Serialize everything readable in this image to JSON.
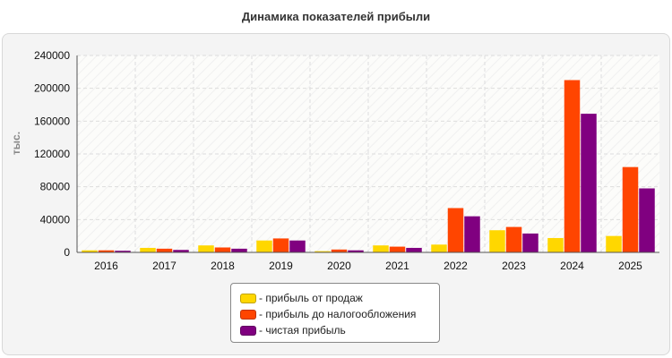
{
  "title": "Динамика показателей прибыли",
  "chart_data": {
    "type": "bar",
    "title": "Динамика показателей прибыли",
    "xlabel": "",
    "ylabel": "тыс.",
    "ylim": [
      0,
      240000
    ],
    "yticks": [
      "0",
      "40000",
      "80000",
      "120000",
      "160000",
      "200000",
      "240000"
    ],
    "grid": true,
    "legend_position": "bottom",
    "categories": [
      "2016",
      "2017",
      "2018",
      "2019",
      "2020",
      "2021",
      "2022",
      "2023",
      "2024",
      "2025"
    ],
    "series": [
      {
        "name": "- прибыль от продаж",
        "color": "#FFD700",
        "values": [
          2500,
          5500,
          8500,
          14500,
          1500,
          8500,
          9500,
          27000,
          17500,
          20000
        ]
      },
      {
        "name": "- прибыль до налогообложения",
        "color": "#FF4500",
        "values": [
          2500,
          4500,
          6000,
          17000,
          3500,
          7000,
          54000,
          31000,
          210000,
          104000
        ]
      },
      {
        "name": "- чистая прибыль",
        "color": "#800080",
        "values": [
          2000,
          3000,
          4500,
          14500,
          2500,
          5500,
          44000,
          23000,
          169000,
          78000
        ]
      }
    ]
  }
}
